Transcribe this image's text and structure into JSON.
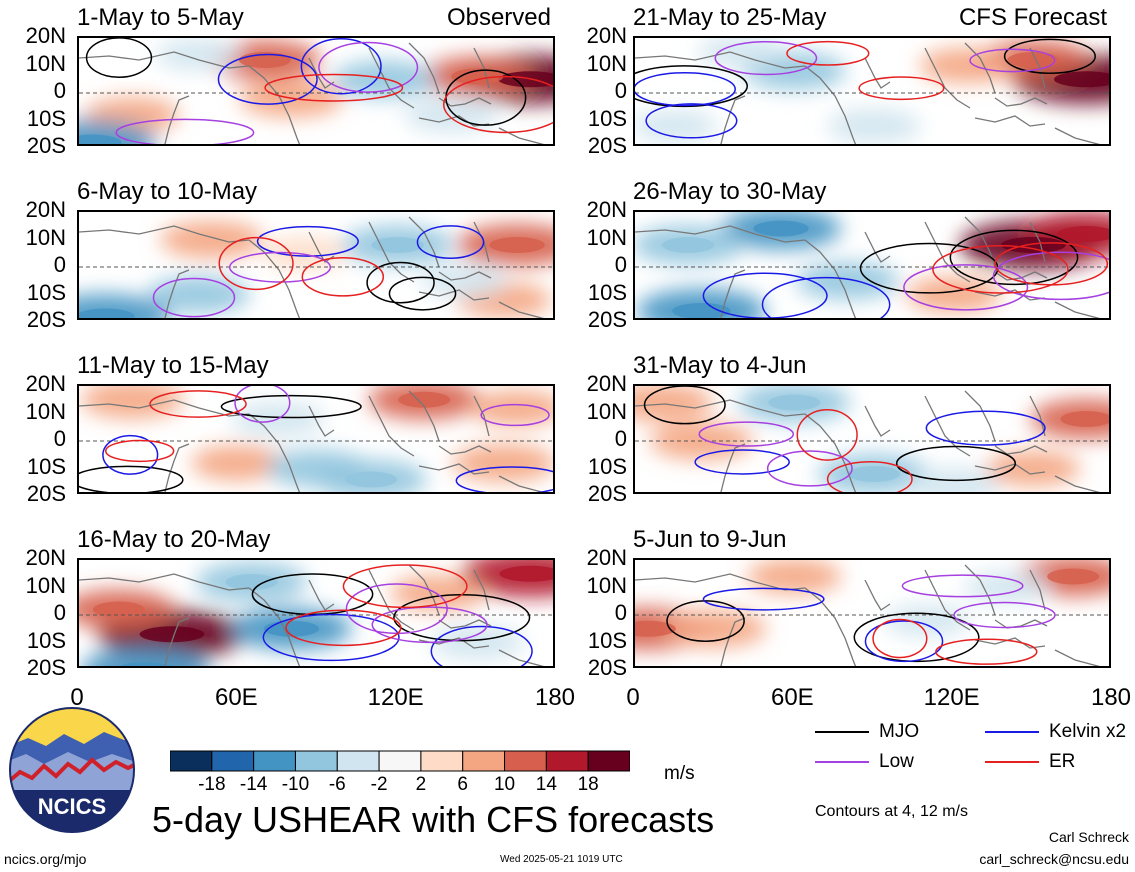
{
  "chart_data": {
    "type": "heatmap",
    "title": "5-day USHEAR with CFS forecasts",
    "colorbar": {
      "unit": "m/s",
      "ticks": [
        "-18",
        "-14",
        "-10",
        "-6",
        "-2",
        "2",
        "6",
        "10",
        "14",
        "18"
      ],
      "colors": [
        "#0b2f5c",
        "#2166ac",
        "#4393c3",
        "#92c5de",
        "#d1e5f0",
        "#f7f7f7",
        "#fddbc7",
        "#f4a582",
        "#d6604d",
        "#b2182b",
        "#67001f"
      ]
    },
    "x_ticks": [
      "0",
      "60E",
      "120E",
      "180"
    ],
    "y_ticks": [
      "20N",
      "10N",
      "0",
      "10S",
      "20S"
    ],
    "contour_note": "Contours at 4, 12 m/s",
    "legend": [
      {
        "label": "MJO",
        "color": "#000000"
      },
      {
        "label": "Kelvin x2",
        "color": "#1a1ae6"
      },
      {
        "label": "Low",
        "color": "#a640e0"
      },
      {
        "label": "ER",
        "color": "#e62020"
      }
    ],
    "panels": [
      {
        "title": "1-May to 5-May",
        "tag": "Observed",
        "column": "left",
        "features": [
          {
            "lon": 170,
            "lat": 5,
            "v": 18
          },
          {
            "lon": 150,
            "lat": 6,
            "v": 10
          },
          {
            "lon": 70,
            "lat": 12,
            "v": 10
          },
          {
            "lon": 80,
            "lat": -2,
            "v": 8
          },
          {
            "lon": 20,
            "lat": -8,
            "v": 6
          },
          {
            "lon": 5,
            "lat": -18,
            "v": -14
          },
          {
            "lon": 115,
            "lat": 5,
            "v": -8
          },
          {
            "lon": 140,
            "lat": -8,
            "v": -6
          },
          {
            "lon": 45,
            "lat": 14,
            "v": -4
          }
        ]
      },
      {
        "title": "6-May to 10-May",
        "column": "left",
        "features": [
          {
            "lon": 165,
            "lat": 8,
            "v": 12
          },
          {
            "lon": 50,
            "lat": 10,
            "v": 8
          },
          {
            "lon": 85,
            "lat": 5,
            "v": 4
          },
          {
            "lon": 120,
            "lat": 8,
            "v": -10
          },
          {
            "lon": 10,
            "lat": -18,
            "v": -14
          },
          {
            "lon": 45,
            "lat": -10,
            "v": -8
          },
          {
            "lon": 160,
            "lat": -12,
            "v": 6
          },
          {
            "lon": 145,
            "lat": -5,
            "v": -4
          }
        ]
      },
      {
        "title": "11-May to 15-May",
        "column": "left",
        "features": [
          {
            "lon": 130,
            "lat": 15,
            "v": 10
          },
          {
            "lon": 20,
            "lat": 15,
            "v": 8
          },
          {
            "lon": 60,
            "lat": -8,
            "v": 6
          },
          {
            "lon": 160,
            "lat": -8,
            "v": 8
          },
          {
            "lon": 90,
            "lat": -10,
            "v": -8
          },
          {
            "lon": 110,
            "lat": -14,
            "v": -10
          },
          {
            "lon": 75,
            "lat": 8,
            "v": -6
          },
          {
            "lon": 165,
            "lat": 12,
            "v": 6
          }
        ]
      },
      {
        "title": "16-May to 20-May",
        "column": "left",
        "features": [
          {
            "lon": 35,
            "lat": -7,
            "v": 18
          },
          {
            "lon": 15,
            "lat": 2,
            "v": 10
          },
          {
            "lon": 170,
            "lat": 15,
            "v": 16
          },
          {
            "lon": 80,
            "lat": -5,
            "v": -12
          },
          {
            "lon": 65,
            "lat": 12,
            "v": -10
          },
          {
            "lon": 25,
            "lat": -20,
            "v": -14
          },
          {
            "lon": 135,
            "lat": 8,
            "v": 6
          },
          {
            "lon": 150,
            "lat": -10,
            "v": -6
          }
        ]
      },
      {
        "title": "21-May to 25-May",
        "tag": "CFS Forecast",
        "column": "right",
        "features": [
          {
            "lon": 170,
            "lat": 5,
            "v": 18
          },
          {
            "lon": 150,
            "lat": 12,
            "v": 10
          },
          {
            "lon": 125,
            "lat": 10,
            "v": 6
          },
          {
            "lon": 60,
            "lat": 8,
            "v": -8
          },
          {
            "lon": 90,
            "lat": -12,
            "v": -6
          },
          {
            "lon": 15,
            "lat": -12,
            "v": -4
          },
          {
            "lon": 40,
            "lat": 15,
            "v": -4
          }
        ]
      },
      {
        "title": "26-May to 30-May",
        "column": "right",
        "features": [
          {
            "lon": 150,
            "lat": 8,
            "v": 18
          },
          {
            "lon": 170,
            "lat": 12,
            "v": 14
          },
          {
            "lon": 55,
            "lat": 14,
            "v": -12
          },
          {
            "lon": 20,
            "lat": 8,
            "v": -10
          },
          {
            "lon": 25,
            "lat": -16,
            "v": -14
          },
          {
            "lon": 80,
            "lat": -5,
            "v": -8
          },
          {
            "lon": 120,
            "lat": -10,
            "v": 6
          }
        ]
      },
      {
        "title": "31-May to 4-Jun",
        "column": "right",
        "features": [
          {
            "lon": 60,
            "lat": 14,
            "v": -10
          },
          {
            "lon": 90,
            "lat": -12,
            "v": -10
          },
          {
            "lon": 120,
            "lat": -16,
            "v": -6
          },
          {
            "lon": 170,
            "lat": 8,
            "v": 10
          },
          {
            "lon": 10,
            "lat": 14,
            "v": 8
          },
          {
            "lon": 25,
            "lat": 0,
            "v": 8
          },
          {
            "lon": 150,
            "lat": -10,
            "v": 6
          }
        ]
      },
      {
        "title": "5-Jun to 9-Jun",
        "column": "right",
        "features": [
          {
            "lon": 5,
            "lat": -5,
            "v": 12
          },
          {
            "lon": 30,
            "lat": -5,
            "v": 8
          },
          {
            "lon": 60,
            "lat": 14,
            "v": 6
          },
          {
            "lon": 165,
            "lat": 14,
            "v": 10
          },
          {
            "lon": 110,
            "lat": -2,
            "v": -4
          },
          {
            "lon": 140,
            "lat": 10,
            "v": -4
          }
        ]
      }
    ]
  },
  "logo": {
    "text": "NCICS"
  },
  "footer": {
    "left": "ncics.org/mjo",
    "timestamp": "Wed 2025-05-21 1019 UTC",
    "author": "Carl Schreck",
    "email": "carl_schreck@ncsu.edu"
  }
}
